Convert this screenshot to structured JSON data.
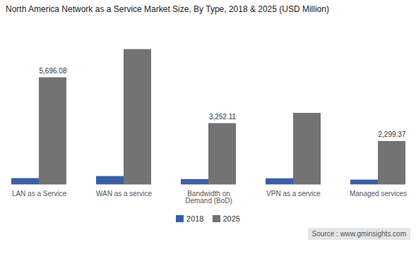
{
  "chart_data": {
    "type": "bar",
    "title": "North America Network as a Service Market Size, By Type, 2018 & 2025 (USD Million)",
    "categories": [
      "LAN as a Service",
      "WAN as a service",
      "Bandwidth on\nDemand (BoD)",
      "VPN as a service",
      "Managed services"
    ],
    "series": [
      {
        "name": "2018",
        "color": "#3a5fa8",
        "values": [
          320,
          430,
          270,
          310,
          240
        ]
      },
      {
        "name": "2025",
        "color": "#737373",
        "values": [
          5696.08,
          7200,
          3252.11,
          3800,
          2299.37
        ],
        "value_labels": [
          "5,696.08",
          null,
          "3,252.11",
          null,
          "2,299.37"
        ]
      }
    ],
    "ylim": [
      0,
      8200
    ],
    "grid": false,
    "tick_labels": "x",
    "legend": "bottom",
    "annotations": [
      "Source : www.gminsights.com"
    ]
  }
}
